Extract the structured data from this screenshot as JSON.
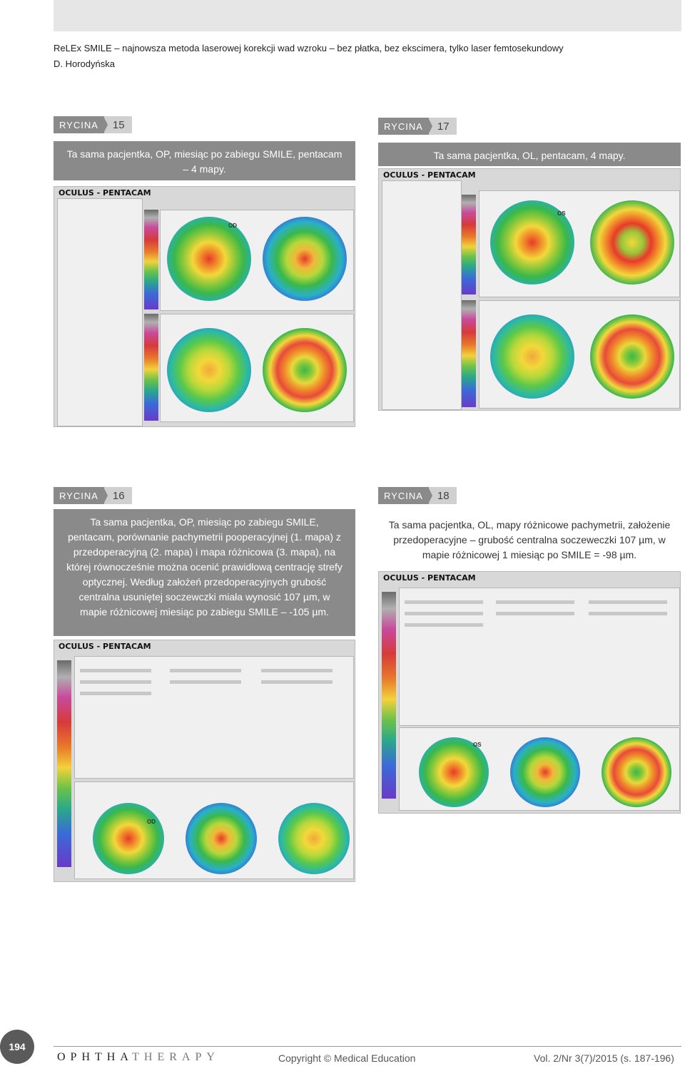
{
  "header": {
    "line1": "ReLEx SMILE – najnowsza metoda laserowej korekcji wad wzroku – bez płatka, bez ekscimera, tylko laser femtosekundowy",
    "line2": "D. Horodyńska"
  },
  "figures": [
    {
      "label": "RYCINA",
      "number": "15",
      "caption": "Ta sama pacjentka, OP, miesiąc po zabiegu SMILE, pentacam – 4 mapy."
    },
    {
      "label": "RYCINA",
      "number": "17",
      "caption": "Ta sama pacjentka, OL, pentacam, 4 mapy."
    },
    {
      "label": "RYCINA",
      "number": "16",
      "caption": "Ta sama pacjentka, OP, miesiąc po zabiegu SMILE, pentacam, porównanie pachymetrii pooperacyjnej (1. mapa) z przedoperacyjną (2. mapa) i mapa różnicowa (3. mapa), na której równocześnie można ocenić prawidłową centrację strefy optycznej. Według założeń przedoperacyjnych grubość centralna usuniętej soczewczki miała wynosić 107 µm, w mapie różnicowej miesiąc po zabiegu SMILE – -105 µm."
    },
    {
      "label": "RYCINA",
      "number": "18",
      "caption": "Ta sama pacjentka, OL, mapy różnicowe pachymetrii, założenie przedoperacyjne – grubość centralna soczeweczki 107 µm, w mapie różnicowej 1 miesiąc po SMILE = -98 µm."
    }
  ],
  "screenshots": {
    "brand": "OCULUS - PENTACAM",
    "eye_right": "OD",
    "eye_left": "OS"
  },
  "footer": {
    "page_number": "194",
    "journal_dark": "OPHTHA",
    "journal_light": "THERAPY",
    "copyright": "Copyright © Medical Education",
    "volume": "Vol. 2/Nr 3(7)/2015 (s. 187-196)"
  }
}
